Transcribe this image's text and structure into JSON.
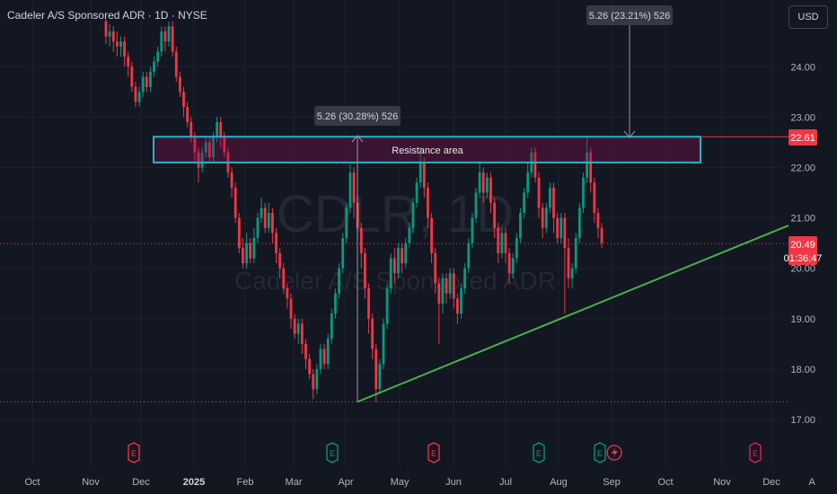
{
  "header": {
    "title": "Cadeler A/S Sponsored ADR · 1D · NYSE"
  },
  "currency_button": "USD",
  "watermark": {
    "ticker": "CDLR, 1D",
    "name": "Cadeler A/S Sponsored ADR"
  },
  "price_tags": {
    "resistance_level": "22.61",
    "last_price": "20.49",
    "countdown": "01:36:47",
    "resistance_color": "#f23645",
    "last_color": "#f23645"
  },
  "annotations": {
    "measure_1": "5.26 (30.28%) 526",
    "measure_2": "5.26 (23.21%) 526",
    "zone_label": "Resistance area"
  },
  "events": [
    "E",
    "E",
    "E",
    "E",
    "E",
    "E"
  ],
  "footer_letter": "A",
  "colors": {
    "up": "#089981",
    "down": "#f23645",
    "zone_border": "#22b7c9",
    "trendline": "#4caf50"
  },
  "chart_data": {
    "type": "candlestick",
    "title": "Cadeler A/S Sponsored ADR · 1D · NYSE",
    "ylim": [
      16.8,
      24.9
    ],
    "y_ticks": [
      "24.00",
      "23.00",
      "22.00",
      "21.00",
      "20.00",
      "19.00",
      "18.00",
      "17.00"
    ],
    "x_ticks": [
      "Oct",
      "Nov",
      "Dec",
      "2025",
      "Feb",
      "Mar",
      "Apr",
      "May",
      "Jun",
      "Jul",
      "Aug",
      "Sep",
      "Oct",
      "Nov",
      "Dec"
    ],
    "resistance_zone": [
      22.1,
      22.61
    ],
    "trendline": {
      "from": [
        "2025-04-07",
        17.35
      ],
      "to": [
        "2025-12-31",
        20.85
      ]
    },
    "last_close": 20.49,
    "candles": [
      [
        24.9,
        24.6,
        24.95,
        24.45
      ],
      [
        24.6,
        24.7,
        24.85,
        24.4
      ],
      [
        24.7,
        24.5,
        24.8,
        24.3
      ],
      [
        24.5,
        24.4,
        24.7,
        24.2
      ],
      [
        24.4,
        24.5,
        24.6,
        24.2
      ],
      [
        24.5,
        24.2,
        24.6,
        24.0
      ],
      [
        24.2,
        24.0,
        24.3,
        23.8
      ],
      [
        24.0,
        23.6,
        24.1,
        23.5
      ],
      [
        23.6,
        23.3,
        23.7,
        23.2
      ],
      [
        23.3,
        23.5,
        23.6,
        23.2
      ],
      [
        23.5,
        23.8,
        23.9,
        23.4
      ],
      [
        23.8,
        23.6,
        23.9,
        23.5
      ],
      [
        23.6,
        23.9,
        24.0,
        23.5
      ],
      [
        23.9,
        24.1,
        24.2,
        23.8
      ],
      [
        24.1,
        24.3,
        24.4,
        24.0
      ],
      [
        24.3,
        24.7,
        24.8,
        24.2
      ],
      [
        24.7,
        24.5,
        24.8,
        24.3
      ],
      [
        24.5,
        24.8,
        24.9,
        24.4
      ],
      [
        24.8,
        24.3,
        24.9,
        24.2
      ],
      [
        24.3,
        23.8,
        24.4,
        23.7
      ],
      [
        23.8,
        23.5,
        23.9,
        23.4
      ],
      [
        23.5,
        23.2,
        23.6,
        23.0
      ],
      [
        23.2,
        22.9,
        23.3,
        22.8
      ],
      [
        22.9,
        22.6,
        23.0,
        22.5
      ],
      [
        22.6,
        22.3,
        22.7,
        22.1
      ],
      [
        22.3,
        22.0,
        22.4,
        21.7
      ],
      [
        22.0,
        22.3,
        22.4,
        21.9
      ],
      [
        22.3,
        22.5,
        22.6,
        22.2
      ],
      [
        22.5,
        22.2,
        22.6,
        22.1
      ],
      [
        22.2,
        22.6,
        22.7,
        22.1
      ],
      [
        22.6,
        22.9,
        23.0,
        22.5
      ],
      [
        22.9,
        22.6,
        23.0,
        22.4
      ],
      [
        22.6,
        22.3,
        22.7,
        22.2
      ],
      [
        22.3,
        21.9,
        22.4,
        21.8
      ],
      [
        21.9,
        21.6,
        22.0,
        21.4
      ],
      [
        21.6,
        21.0,
        21.7,
        20.9
      ],
      [
        21.0,
        20.4,
        21.1,
        20.3
      ],
      [
        20.4,
        20.1,
        20.6,
        20.0
      ],
      [
        20.1,
        20.5,
        20.7,
        20.0
      ],
      [
        20.5,
        20.2,
        20.6,
        20.1
      ],
      [
        20.2,
        20.6,
        20.8,
        20.1
      ],
      [
        20.6,
        21.0,
        21.1,
        20.5
      ],
      [
        21.0,
        21.2,
        21.4,
        20.9
      ],
      [
        21.2,
        20.8,
        21.3,
        20.7
      ],
      [
        20.8,
        21.1,
        21.3,
        20.7
      ],
      [
        21.1,
        20.7,
        21.2,
        20.5
      ],
      [
        20.7,
        20.3,
        20.8,
        20.1
      ],
      [
        20.3,
        20.0,
        20.4,
        19.8
      ],
      [
        20.0,
        19.6,
        20.1,
        19.5
      ],
      [
        19.6,
        19.4,
        19.7,
        19.2
      ],
      [
        19.4,
        19.0,
        19.5,
        18.8
      ],
      [
        19.0,
        18.7,
        19.1,
        18.6
      ],
      [
        18.7,
        18.9,
        19.0,
        18.5
      ],
      [
        18.9,
        18.5,
        19.0,
        18.3
      ],
      [
        18.5,
        18.2,
        18.6,
        18.0
      ],
      [
        18.2,
        17.9,
        18.3,
        17.8
      ],
      [
        17.9,
        17.6,
        18.0,
        17.4
      ],
      [
        17.6,
        18.0,
        18.1,
        17.5
      ],
      [
        18.0,
        18.4,
        18.5,
        17.9
      ],
      [
        18.4,
        18.1,
        18.5,
        18.0
      ],
      [
        18.1,
        18.6,
        18.7,
        18.0
      ],
      [
        18.6,
        19.1,
        19.2,
        18.5
      ],
      [
        19.1,
        19.5,
        19.6,
        19.0
      ],
      [
        19.5,
        20.0,
        20.1,
        19.4
      ],
      [
        20.0,
        20.6,
        20.7,
        19.9
      ],
      [
        20.6,
        21.2,
        21.3,
        20.5
      ],
      [
        21.2,
        21.9,
        22.1,
        21.1
      ],
      [
        21.9,
        21.3,
        22.0,
        21.0
      ],
      [
        21.3,
        20.8,
        21.4,
        20.6
      ],
      [
        20.8,
        20.3,
        20.9,
        20.0
      ],
      [
        20.3,
        19.6,
        20.4,
        19.4
      ],
      [
        19.6,
        19.0,
        19.7,
        18.7
      ],
      [
        19.0,
        18.4,
        19.1,
        18.2
      ],
      [
        18.4,
        17.6,
        18.5,
        17.35
      ],
      [
        17.6,
        18.1,
        18.2,
        17.5
      ],
      [
        18.1,
        18.9,
        19.0,
        18.0
      ],
      [
        18.9,
        19.6,
        19.7,
        18.8
      ],
      [
        19.6,
        20.2,
        20.3,
        19.5
      ],
      [
        20.2,
        19.9,
        20.4,
        19.7
      ],
      [
        19.9,
        20.4,
        20.5,
        19.8
      ],
      [
        20.4,
        20.1,
        20.5,
        19.9
      ],
      [
        20.1,
        20.5,
        20.6,
        20.0
      ],
      [
        20.5,
        20.8,
        20.9,
        20.4
      ],
      [
        20.8,
        21.3,
        21.4,
        20.7
      ],
      [
        21.3,
        21.7,
        21.8,
        21.2
      ],
      [
        21.7,
        22.1,
        22.4,
        21.6
      ],
      [
        22.1,
        21.6,
        22.2,
        21.4
      ],
      [
        21.6,
        21.0,
        21.7,
        20.8
      ],
      [
        21.0,
        20.3,
        21.1,
        20.1
      ],
      [
        20.3,
        19.7,
        20.4,
        19.5
      ],
      [
        19.7,
        19.3,
        19.8,
        18.5
      ],
      [
        19.3,
        19.8,
        19.9,
        19.1
      ],
      [
        19.8,
        19.5,
        19.9,
        19.3
      ],
      [
        19.5,
        19.9,
        20.0,
        19.4
      ],
      [
        19.9,
        19.4,
        20.0,
        19.2
      ],
      [
        19.4,
        19.1,
        19.5,
        18.9
      ],
      [
        19.1,
        19.6,
        19.7,
        19.0
      ],
      [
        19.6,
        20.0,
        20.1,
        19.5
      ],
      [
        20.0,
        20.5,
        20.6,
        19.9
      ],
      [
        20.5,
        21.0,
        21.1,
        20.4
      ],
      [
        21.0,
        21.5,
        21.6,
        20.9
      ],
      [
        21.5,
        21.9,
        22.1,
        21.4
      ],
      [
        21.9,
        21.5,
        22.0,
        21.3
      ],
      [
        21.5,
        21.8,
        21.9,
        21.4
      ],
      [
        21.8,
        21.3,
        21.9,
        21.1
      ],
      [
        21.3,
        20.8,
        21.4,
        20.6
      ],
      [
        20.8,
        20.3,
        20.9,
        20.1
      ],
      [
        20.3,
        20.7,
        20.8,
        20.2
      ],
      [
        20.7,
        20.3,
        20.8,
        20.1
      ],
      [
        20.3,
        19.9,
        20.4,
        19.7
      ],
      [
        19.9,
        20.2,
        20.3,
        19.8
      ],
      [
        20.2,
        20.6,
        20.7,
        20.1
      ],
      [
        20.6,
        21.1,
        21.2,
        20.5
      ],
      [
        21.1,
        21.5,
        21.6,
        21.0
      ],
      [
        21.5,
        21.9,
        22.1,
        21.4
      ],
      [
        21.9,
        22.3,
        22.4,
        21.8
      ],
      [
        22.3,
        21.8,
        22.4,
        21.7
      ],
      [
        21.8,
        21.2,
        21.9,
        21.0
      ],
      [
        21.2,
        20.8,
        21.3,
        20.6
      ],
      [
        20.8,
        21.2,
        21.3,
        20.7
      ],
      [
        21.2,
        21.6,
        21.7,
        21.1
      ],
      [
        21.6,
        21.0,
        21.7,
        20.7
      ],
      [
        21.0,
        20.6,
        21.1,
        20.5
      ],
      [
        20.6,
        21.0,
        21.1,
        20.5
      ],
      [
        21.0,
        20.4,
        21.1,
        19.1
      ],
      [
        20.4,
        19.8,
        20.6,
        19.6
      ],
      [
        19.8,
        20.0,
        20.1,
        19.6
      ],
      [
        20.0,
        20.6,
        20.7,
        19.9
      ],
      [
        20.6,
        21.2,
        21.3,
        20.5
      ],
      [
        21.2,
        21.8,
        21.9,
        21.1
      ],
      [
        21.8,
        22.3,
        22.61,
        21.7
      ],
      [
        22.3,
        21.7,
        22.4,
        21.5
      ],
      [
        21.7,
        21.1,
        21.8,
        20.9
      ],
      [
        21.1,
        20.8,
        21.2,
        20.6
      ],
      [
        20.8,
        20.5,
        20.9,
        20.4
      ]
    ]
  }
}
